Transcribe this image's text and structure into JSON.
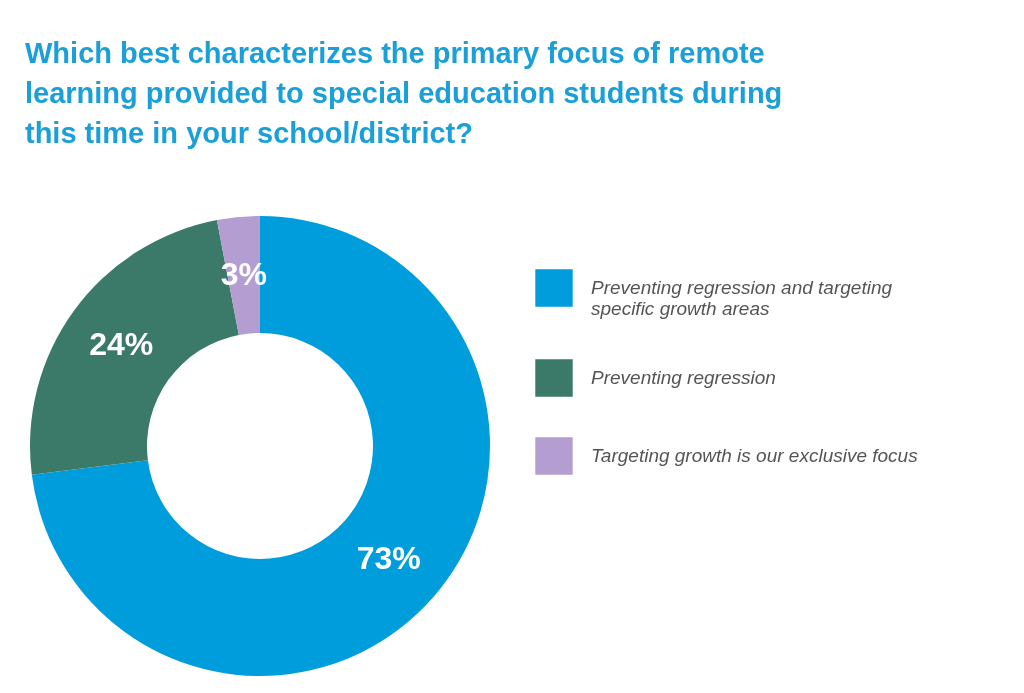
{
  "chart_data": {
    "type": "donut",
    "title": "Which best characterizes the primary focus of remote learning provided to special education students during this time in your school/district?",
    "categories": [
      "Preventing regression and targeting specific growth areas",
      "Preventing regression",
      "Targeting growth is our exclusive focus"
    ],
    "values": [
      73,
      24,
      3
    ],
    "colors": [
      "#009ddc",
      "#3b7a69",
      "#b49dd0"
    ],
    "value_labels": [
      "73%",
      "24%",
      "3%"
    ],
    "legend": "right"
  }
}
